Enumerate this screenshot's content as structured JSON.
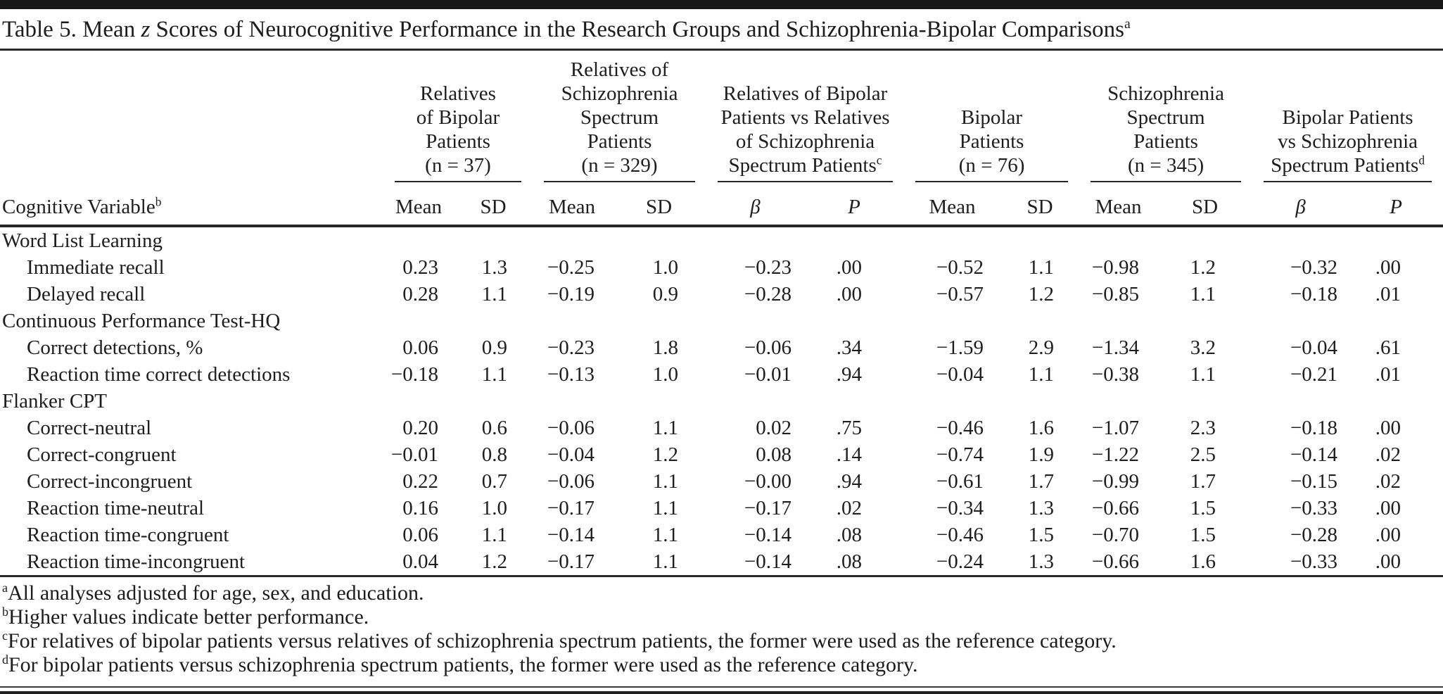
{
  "title": {
    "part1": "Table 5. Mean ",
    "z": "z",
    "part2": " Scores of Neurocognitive Performance in the Research Groups and Schizophrenia-Bipolar Comparisons",
    "marker": "a"
  },
  "columns": {
    "label": "Cognitive Variable",
    "label_marker": "b"
  },
  "groups": [
    {
      "label": "Relatives\nof Bipolar\nPatients\n(n = 37)",
      "marker": "",
      "sub": [
        "Mean",
        "SD"
      ]
    },
    {
      "label": "Relatives of\nSchizophrenia\nSpectrum\nPatients\n(n = 329)",
      "marker": "",
      "sub": [
        "Mean",
        "SD"
      ]
    },
    {
      "label": "Relatives of Bipolar\nPatients vs Relatives\nof Schizophrenia\nSpectrum Patients",
      "marker": "c",
      "sub": [
        "β",
        "P"
      ]
    },
    {
      "label": "Bipolar\nPatients\n(n = 76)",
      "marker": "",
      "sub": [
        "Mean",
        "SD"
      ]
    },
    {
      "label": "Schizophrenia\nSpectrum\nPatients\n(n = 345)",
      "marker": "",
      "sub": [
        "Mean",
        "SD"
      ]
    },
    {
      "label": "Bipolar Patients\nvs Schizophrenia\nSpectrum Patients",
      "marker": "d",
      "sub": [
        "β",
        "P"
      ]
    }
  ],
  "rows": [
    {
      "type": "section",
      "label": "Word List Learning"
    },
    {
      "type": "data",
      "label": "Immediate recall",
      "values": [
        "0.23",
        "1.3",
        "−0.25",
        "1.0",
        "−0.23",
        ".00",
        "−0.52",
        "1.1",
        "−0.98",
        "1.2",
        "−0.32",
        ".00"
      ]
    },
    {
      "type": "data",
      "label": "Delayed recall",
      "values": [
        "0.28",
        "1.1",
        "−0.19",
        "0.9",
        "−0.28",
        ".00",
        "−0.57",
        "1.2",
        "−0.85",
        "1.1",
        "−0.18",
        ".01"
      ]
    },
    {
      "type": "section",
      "label": "Continuous Performance Test-HQ"
    },
    {
      "type": "data",
      "label": "Correct detections, %",
      "values": [
        "0.06",
        "0.9",
        "−0.23",
        "1.8",
        "−0.06",
        ".34",
        "−1.59",
        "2.9",
        "−1.34",
        "3.2",
        "−0.04",
        ".61"
      ]
    },
    {
      "type": "data",
      "label": "Reaction time correct detections",
      "values": [
        "−0.18",
        "1.1",
        "−0.13",
        "1.0",
        "−0.01",
        ".94",
        "−0.04",
        "1.1",
        "−0.38",
        "1.1",
        "−0.21",
        ".01"
      ]
    },
    {
      "type": "section",
      "label": "Flanker CPT"
    },
    {
      "type": "data",
      "label": "Correct-neutral",
      "values": [
        "0.20",
        "0.6",
        "−0.06",
        "1.1",
        "0.02",
        ".75",
        "−0.46",
        "1.6",
        "−1.07",
        "2.3",
        "−0.18",
        ".00"
      ]
    },
    {
      "type": "data",
      "label": "Correct-congruent",
      "values": [
        "−0.01",
        "0.8",
        "−0.04",
        "1.2",
        "0.08",
        ".14",
        "−0.74",
        "1.9",
        "−1.22",
        "2.5",
        "−0.14",
        ".02"
      ]
    },
    {
      "type": "data",
      "label": "Correct-incongruent",
      "values": [
        "0.22",
        "0.7",
        "−0.06",
        "1.1",
        "−0.00",
        ".94",
        "−0.61",
        "1.7",
        "−0.99",
        "1.7",
        "−0.15",
        ".02"
      ]
    },
    {
      "type": "data",
      "label": "Reaction time-neutral",
      "values": [
        "0.16",
        "1.0",
        "−0.17",
        "1.1",
        "−0.17",
        ".02",
        "−0.34",
        "1.3",
        "−0.66",
        "1.5",
        "−0.33",
        ".00"
      ]
    },
    {
      "type": "data",
      "label": "Reaction time-congruent",
      "values": [
        "0.06",
        "1.1",
        "−0.14",
        "1.1",
        "−0.14",
        ".08",
        "−0.46",
        "1.5",
        "−0.70",
        "1.5",
        "−0.28",
        ".00"
      ]
    },
    {
      "type": "data",
      "label": "Reaction time-incongruent",
      "values": [
        "0.04",
        "1.2",
        "−0.17",
        "1.1",
        "−0.14",
        ".08",
        "−0.24",
        "1.3",
        "−0.66",
        "1.6",
        "−0.33",
        ".00"
      ]
    }
  ],
  "footnotes": [
    {
      "marker": "a",
      "text": "All analyses adjusted for age, sex, and education."
    },
    {
      "marker": "b",
      "text": "Higher values indicate better performance."
    },
    {
      "marker": "c",
      "text": "For relatives of bipolar patients versus relatives of schizophrenia spectrum patients, the former were used as the reference category."
    },
    {
      "marker": "d",
      "text": "For bipolar patients versus schizophrenia spectrum patients, the former were used as the reference category."
    }
  ]
}
